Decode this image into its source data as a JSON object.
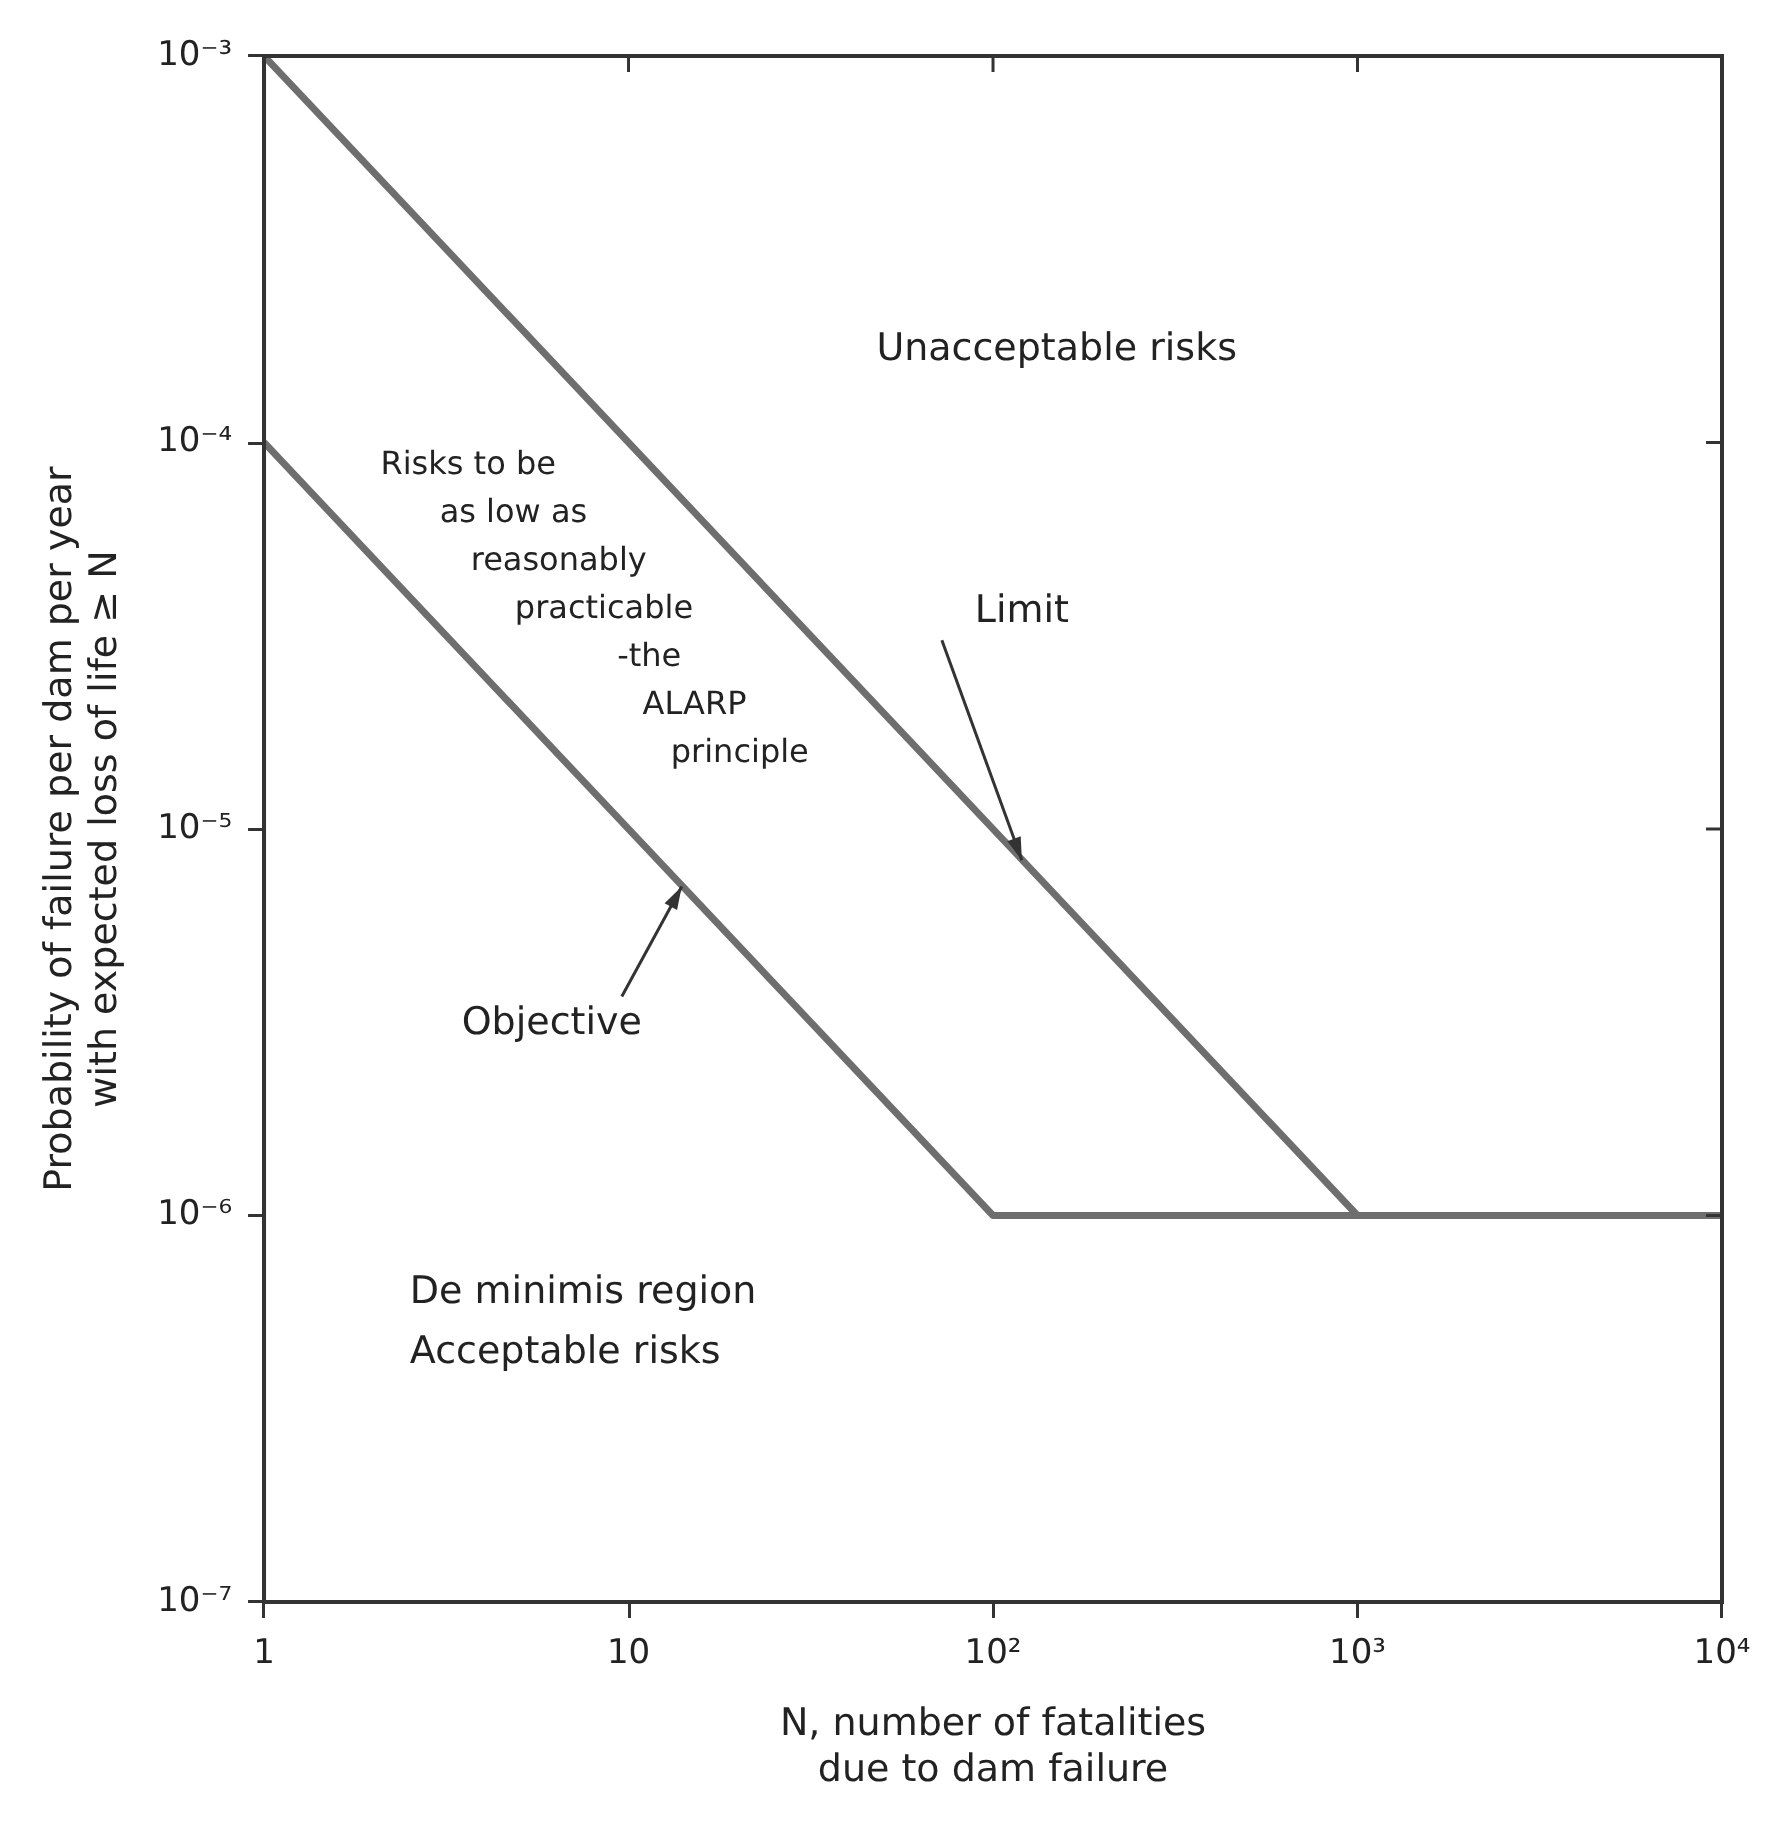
{
  "chart_data": {
    "type": "line",
    "xlabel": "N, number of fatalities\ndue to dam failure",
    "ylabel": "Probability of failure per dam per year\nwith expected loss of life ≥ N",
    "series": [
      {
        "color": "#6e6e6e",
        "x": [
          1,
          1000,
          10000
        ],
        "values": [
          0.001,
          1e-06,
          1e-06
        ]
      },
      {
        "color": "#6e6e6e",
        "x": [
          1,
          100,
          10000
        ],
        "values": [
          0.0001,
          1e-06,
          1e-06
        ]
      }
    ],
    "log": "xy",
    "xlim": [
      1,
      10000
    ],
    "ylim": [
      1e-07,
      0.001
    ],
    "xticks": [
      {
        "value": 1,
        "label": "1"
      },
      {
        "value": 10,
        "label": "10"
      },
      {
        "value": 100,
        "label": "10²"
      },
      {
        "value": 1000,
        "label": "10³"
      },
      {
        "value": 10000,
        "label": "10⁴"
      }
    ],
    "yticks": [
      {
        "value": 1e-07,
        "label": "10⁻⁷"
      },
      {
        "value": 1e-06,
        "label": "10⁻⁶"
      },
      {
        "value": 1e-05,
        "label": "10⁻⁵"
      },
      {
        "value": 0.0001,
        "label": "10⁻⁴"
      },
      {
        "value": 0.001,
        "label": "10⁻³"
      }
    ],
    "grid": false,
    "legend": false,
    "marker": "none",
    "line_style": "solid",
    "annotations": [
      "Unacceptable risks",
      "Risks to be\nas low as\nreasonably\npracticable\n-the\nALARP\nprinciple",
      "De minimis region\nAcceptable risks",
      {
        "text": "Limit",
        "x": 120,
        "y": 8.3e-06
      },
      {
        "text": "Objective",
        "x": 14,
        "y": 7.1e-06
      }
    ]
  }
}
